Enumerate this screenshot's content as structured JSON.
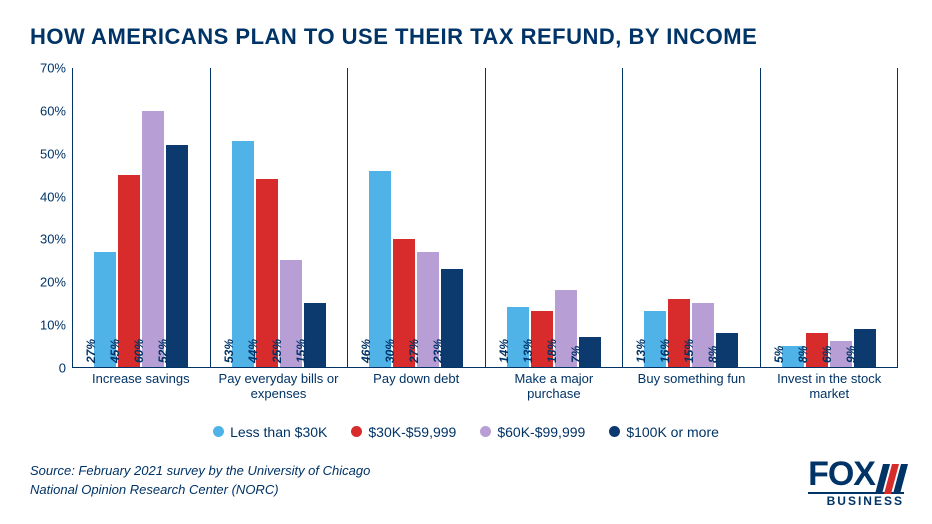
{
  "title": "HOW AMERICANS PLAN TO USE THEIR TAX REFUND, BY INCOME",
  "chart": {
    "type": "bar",
    "ylim": [
      0,
      70
    ],
    "ytick_step": 10,
    "y_suffix": "%",
    "axis_color": "#003366",
    "background_color": "#ffffff",
    "categories": [
      "Increase savings",
      "Pay everyday bills or expenses",
      "Pay down debt",
      "Make a major purchase",
      "Buy something fun",
      "Invest in the stock market"
    ],
    "series": [
      {
        "label": "Less than $30K",
        "color": "#4fb3e8"
      },
      {
        "label": "$30K-$59,999",
        "color": "#d82b2b"
      },
      {
        "label": "$60K-$99,999",
        "color": "#b79fd6"
      },
      {
        "label": "$100K or more",
        "color": "#0d3a6e"
      }
    ],
    "values": [
      [
        27,
        45,
        60,
        52
      ],
      [
        53,
        44,
        25,
        15
      ],
      [
        46,
        30,
        27,
        23
      ],
      [
        14,
        13,
        18,
        7
      ],
      [
        13,
        16,
        15,
        8
      ],
      [
        5,
        8,
        6,
        9
      ]
    ],
    "bar_label_fontsize": 12,
    "x_label_fontsize": 13,
    "y_label_fontsize": 13
  },
  "source_line1": "Source: February 2021 survey by the University of Chicago",
  "source_line2": "National Opinion Research Center (NORC)",
  "logo": {
    "text": "FOX",
    "subtext": "BUSINESS",
    "stripe_colors": [
      "#003366",
      "#d82b2b",
      "#003366"
    ]
  }
}
